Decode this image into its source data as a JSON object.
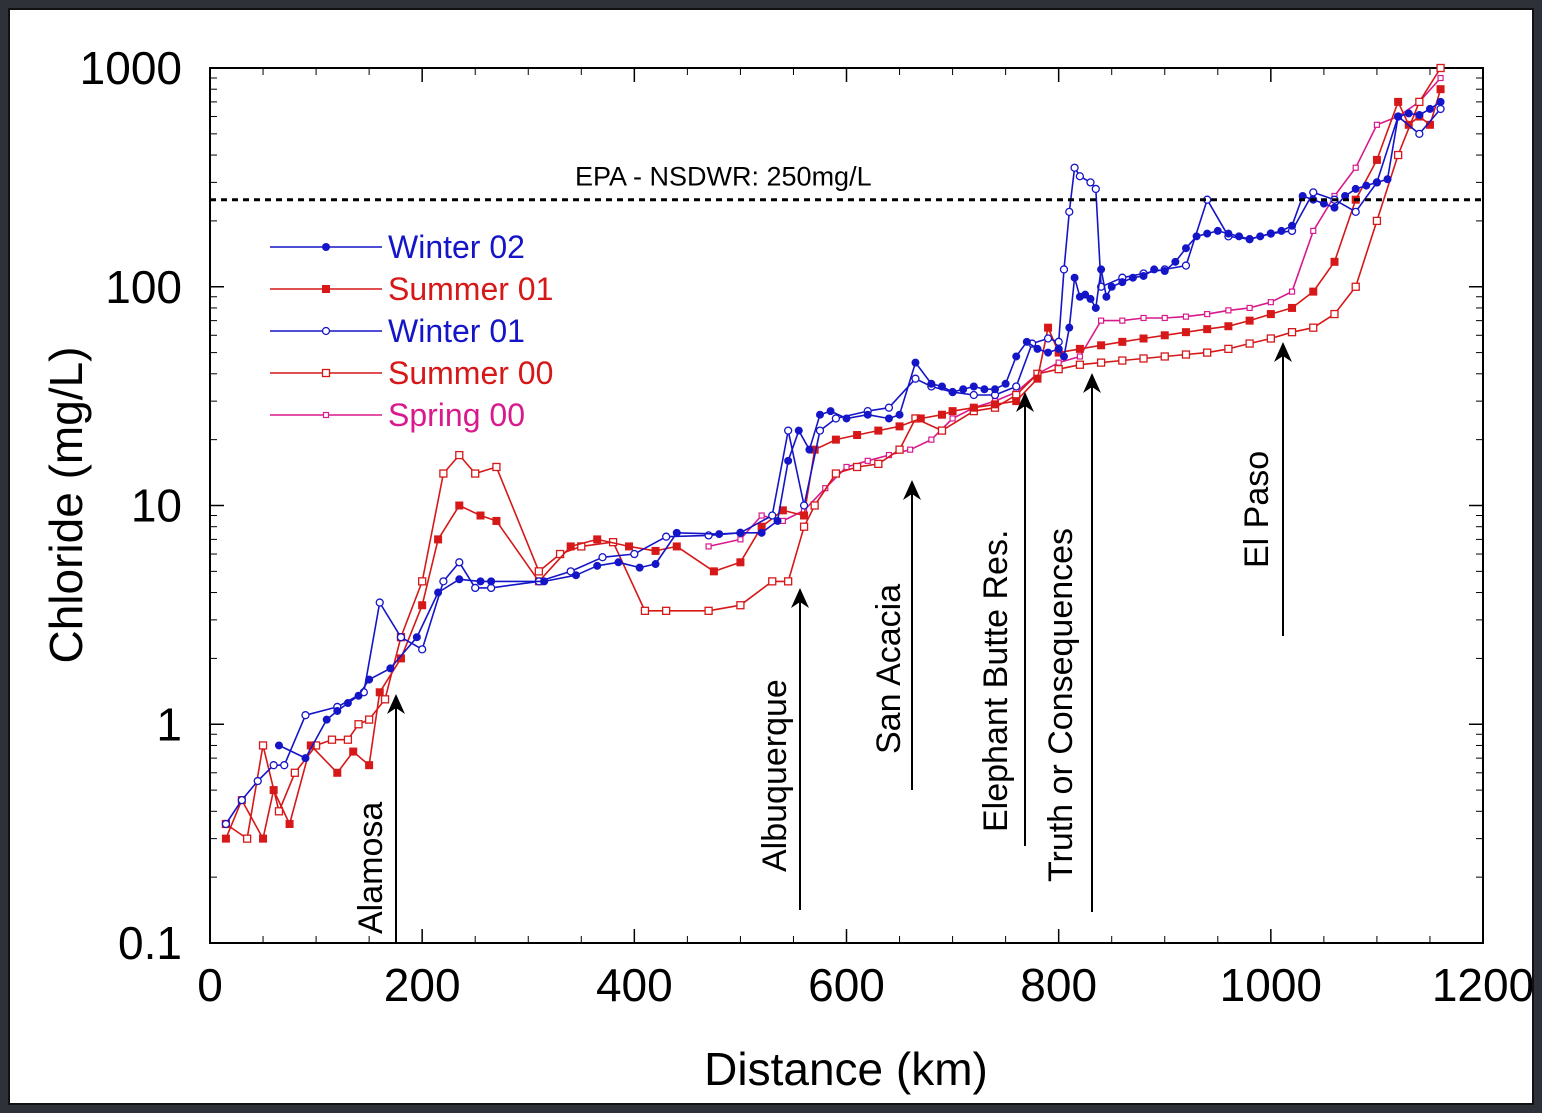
{
  "chart_data": {
    "type": "line",
    "xlabel": "Distance (km)",
    "ylabel": "Chloride (mg/L)",
    "xlim": [
      0,
      1200
    ],
    "ylim": [
      0.1,
      1000
    ],
    "yscale": "log",
    "xticks": [
      0,
      200,
      400,
      600,
      800,
      1000,
      1200
    ],
    "xtick_labels": [
      "0",
      "200",
      "400",
      "600",
      "800",
      "1000",
      "1200"
    ],
    "yticks": [
      0.1,
      1,
      10,
      100,
      1000
    ],
    "ytick_labels": [
      "0.1",
      "1",
      "10",
      "100",
      "1000"
    ],
    "grid": false,
    "legend_position": "upper-left",
    "reference_line": {
      "y": 250,
      "label": "EPA - NSDWR:  250mg/L"
    },
    "annotations": [
      {
        "label": "Alamosa",
        "x": 175
      },
      {
        "label": "Albuquerque",
        "x": 555
      },
      {
        "label": "San Acacia",
        "x": 665
      },
      {
        "label": "Elephant Butte Res.",
        "x": 770
      },
      {
        "label": "Truth or Consequences",
        "x": 833
      },
      {
        "label": "El Paso",
        "x": 1013
      }
    ],
    "series": [
      {
        "name": "Winter 02",
        "color": "#1515c8",
        "marker": "filled-circle",
        "x": [
          65,
          90,
          110,
          120,
          130,
          140,
          150,
          170,
          195,
          215,
          235,
          255,
          265,
          315,
          345,
          365,
          385,
          405,
          420,
          440,
          480,
          500,
          520,
          535,
          545,
          555,
          565,
          575,
          585,
          600,
          620,
          640,
          650,
          665,
          680,
          690,
          700,
          710,
          720,
          730,
          740,
          750,
          760,
          770,
          780,
          790,
          800,
          805,
          810,
          815,
          820,
          825,
          830,
          835,
          840,
          845,
          850,
          860,
          870,
          880,
          890,
          900,
          910,
          920,
          930,
          940,
          950,
          960,
          970,
          980,
          990,
          1000,
          1010,
          1020,
          1030,
          1040,
          1050,
          1060,
          1070,
          1080,
          1090,
          1100,
          1110,
          1120,
          1130,
          1140,
          1150,
          1160
        ],
        "y": [
          0.8,
          0.7,
          1.05,
          1.15,
          1.25,
          1.35,
          1.6,
          1.8,
          2.5,
          4.0,
          4.6,
          4.5,
          4.5,
          4.5,
          4.8,
          5.3,
          5.5,
          5.2,
          5.4,
          7.5,
          7.4,
          7.5,
          7.5,
          8.5,
          16.0,
          22.0,
          18.0,
          26.0,
          27.0,
          25.0,
          26.0,
          25.0,
          26.0,
          45.0,
          36.0,
          35.0,
          33.0,
          34.0,
          35.0,
          34.0,
          34.0,
          36.0,
          48.0,
          56.0,
          52.0,
          50.0,
          52.0,
          48.0,
          65.0,
          110.0,
          90.0,
          92.0,
          88.0,
          80.0,
          120.0,
          90.0,
          100.0,
          105.0,
          110.0,
          112.0,
          120.0,
          118.0,
          130.0,
          150.0,
          170.0,
          175.0,
          180.0,
          175.0,
          170.0,
          165.0,
          170.0,
          175.0,
          180.0,
          190.0,
          260.0,
          250.0,
          240.0,
          230.0,
          260.0,
          280.0,
          290.0,
          300.0,
          310.0,
          600.0,
          620.0,
          610.0,
          650.0,
          700.0
        ]
      },
      {
        "name": "Summer 01",
        "color": "#d61818",
        "marker": "filled-square",
        "x": [
          15,
          30,
          50,
          60,
          75,
          95,
          120,
          135,
          150,
          160,
          180,
          200,
          215,
          235,
          255,
          270,
          310,
          340,
          365,
          395,
          420,
          440,
          475,
          500,
          520,
          540,
          560,
          570,
          590,
          610,
          630,
          650,
          670,
          690,
          700,
          720,
          740,
          760,
          780,
          790,
          800,
          820,
          840,
          860,
          880,
          900,
          920,
          940,
          960,
          980,
          1000,
          1020,
          1040,
          1060,
          1080,
          1100,
          1120,
          1130,
          1140,
          1150,
          1160
        ],
        "y": [
          0.3,
          0.45,
          0.3,
          0.5,
          0.35,
          0.8,
          0.6,
          0.75,
          0.65,
          1.4,
          2.0,
          3.5,
          7.0,
          10.0,
          9.0,
          8.5,
          4.5,
          6.5,
          7.0,
          6.5,
          6.2,
          6.5,
          5.0,
          5.5,
          8.0,
          9.5,
          9.0,
          18.0,
          20.0,
          21.0,
          22.0,
          23.0,
          25.0,
          26.0,
          27.0,
          28.0,
          29.0,
          30.0,
          38.0,
          65.0,
          50.0,
          52.0,
          54.0,
          56.0,
          58.0,
          60.0,
          62.0,
          64.0,
          66.0,
          70.0,
          75.0,
          80.0,
          95.0,
          130.0,
          250.0,
          380.0,
          700.0,
          550.0,
          600.0,
          550.0,
          800.0
        ]
      },
      {
        "name": "Winter 01",
        "color": "#1515c8",
        "marker": "open-circle",
        "x": [
          15,
          30,
          45,
          60,
          70,
          90,
          120,
          145,
          160,
          180,
          200,
          220,
          235,
          250,
          265,
          310,
          340,
          370,
          400,
          430,
          470,
          500,
          530,
          545,
          560,
          575,
          590,
          620,
          640,
          665,
          680,
          700,
          720,
          740,
          760,
          775,
          790,
          800,
          805,
          810,
          815,
          820,
          830,
          835,
          840,
          860,
          880,
          900,
          920,
          940,
          960,
          980,
          1000,
          1020,
          1040,
          1060,
          1080,
          1100,
          1120,
          1140,
          1160
        ],
        "y": [
          0.35,
          0.45,
          0.55,
          0.65,
          0.65,
          1.1,
          1.2,
          1.4,
          3.6,
          2.5,
          2.2,
          4.5,
          5.5,
          4.2,
          4.2,
          4.5,
          5.0,
          5.8,
          6.0,
          7.2,
          7.3,
          7.5,
          9.0,
          22.0,
          10.0,
          22.0,
          25.0,
          27.0,
          28.0,
          38.0,
          35.0,
          33.0,
          32.0,
          32.0,
          35.0,
          55.0,
          58.0,
          56.0,
          120.0,
          220.0,
          350.0,
          320.0,
          300.0,
          280.0,
          100.0,
          110.0,
          115.0,
          120.0,
          125.0,
          250.0,
          170.0,
          165.0,
          175.0,
          180.0,
          270.0,
          250.0,
          220.0,
          300.0,
          600.0,
          500.0,
          650.0
        ]
      },
      {
        "name": "Summer 00",
        "color": "#d61818",
        "marker": "open-square",
        "x": [
          15,
          35,
          50,
          65,
          80,
          100,
          115,
          130,
          140,
          150,
          165,
          180,
          200,
          220,
          235,
          250,
          270,
          310,
          330,
          350,
          380,
          410,
          430,
          470,
          500,
          530,
          545,
          560,
          570,
          590,
          610,
          630,
          650,
          665,
          690,
          720,
          740,
          760,
          780,
          800,
          820,
          840,
          860,
          880,
          900,
          920,
          940,
          960,
          980,
          1000,
          1020,
          1040,
          1060,
          1080,
          1100,
          1120,
          1140,
          1160
        ],
        "y": [
          0.35,
          0.3,
          0.8,
          0.4,
          0.6,
          0.8,
          0.85,
          0.85,
          1.0,
          1.05,
          1.3,
          2.5,
          4.5,
          14.0,
          17.0,
          14.0,
          15.0,
          5.0,
          6.0,
          6.5,
          6.8,
          3.3,
          3.3,
          3.3,
          3.5,
          4.5,
          4.5,
          8.0,
          10.0,
          14.0,
          15.0,
          15.5,
          18.0,
          25.0,
          22.0,
          27.0,
          28.0,
          32.0,
          40.0,
          42.0,
          44.0,
          45.0,
          46.0,
          47.0,
          48.0,
          49.0,
          50.0,
          52.0,
          55.0,
          58.0,
          62.0,
          65.0,
          75.0,
          100.0,
          200.0,
          400.0,
          700.0,
          1000.0
        ]
      },
      {
        "name": "Spring 00",
        "color": "#d81a8c",
        "marker": "small-square",
        "x": [
          470,
          500,
          520,
          540,
          560,
          580,
          600,
          620,
          640,
          660,
          680,
          700,
          720,
          740,
          760,
          780,
          800,
          820,
          840,
          860,
          880,
          900,
          920,
          940,
          960,
          980,
          1000,
          1020,
          1040,
          1060,
          1080,
          1100,
          1120,
          1140,
          1160
        ],
        "y": [
          6.5,
          7.0,
          9.0,
          8.5,
          9.5,
          12.0,
          15.0,
          16.0,
          17.0,
          18.0,
          20.0,
          25.0,
          28.0,
          30.0,
          33.0,
          40.0,
          45.0,
          48.0,
          70.0,
          70.0,
          72.0,
          72.0,
          73.0,
          75.0,
          78.0,
          80.0,
          85.0,
          95.0,
          180.0,
          260.0,
          350.0,
          550.0,
          600.0,
          700.0,
          900.0
        ]
      }
    ]
  }
}
